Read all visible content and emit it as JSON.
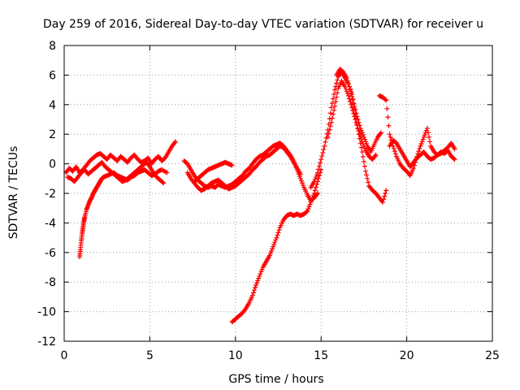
{
  "chart_data": {
    "type": "scatter",
    "title": "Day 259 of 2016, Sidereal Day-to-day VTEC variation (SDTVAR) for receiver u",
    "xlabel": "GPS time / hours",
    "ylabel": "SDTVAR / TECUs",
    "xlim": [
      0,
      25
    ],
    "ylim": [
      -12,
      8
    ],
    "xticks": [
      0,
      5,
      10,
      15,
      20,
      25
    ],
    "yticks": [
      -12,
      -10,
      -8,
      -6,
      -4,
      -2,
      0,
      2,
      4,
      6,
      8
    ],
    "grid": true,
    "marker": "+",
    "color": "#ff0000",
    "series": [
      {
        "x": [
          0.1,
          0.3,
          0.5,
          0.7,
          0.9,
          1.1,
          1.3,
          1.5,
          1.7,
          1.9,
          2.1,
          2.3,
          2.5,
          2.7,
          2.9,
          3.1,
          3.3,
          3.5,
          3.7,
          3.9,
          4.1,
          4.3,
          4.5,
          4.7,
          4.9,
          5.1,
          5.3,
          5.5,
          5.7,
          5.9,
          6.1,
          6.3,
          6.5
        ],
        "y": [
          -0.6,
          -0.3,
          -0.5,
          -0.2,
          -0.6,
          -0.4,
          -0.1,
          0.2,
          0.4,
          0.6,
          0.7,
          0.5,
          0.3,
          0.6,
          0.4,
          0.2,
          0.5,
          0.3,
          0.1,
          0.4,
          0.6,
          0.3,
          0.1,
          0.2,
          0.4,
          0.0,
          0.3,
          0.5,
          0.2,
          0.4,
          0.8,
          1.2,
          1.5
        ]
      },
      {
        "x": [
          0.9,
          0.95,
          1.0,
          1.05,
          1.1,
          1.15,
          1.2,
          1.3,
          1.4,
          1.5,
          1.6,
          1.7,
          1.8,
          1.9,
          2.0,
          2.1,
          2.2,
          2.3,
          2.5,
          2.7,
          2.9,
          3.1,
          3.3,
          3.5,
          3.7,
          3.9,
          4.1,
          4.3,
          4.5,
          4.7,
          4.9,
          5.1,
          5.3,
          5.5,
          5.7,
          6.0
        ],
        "y": [
          -6.3,
          -5.8,
          -5.2,
          -4.7,
          -4.3,
          -3.9,
          -3.6,
          -3.1,
          -2.8,
          -2.5,
          -2.3,
          -2.0,
          -1.8,
          -1.6,
          -1.4,
          -1.2,
          -1.0,
          -0.9,
          -0.8,
          -0.7,
          -0.6,
          -0.8,
          -0.9,
          -1.0,
          -1.1,
          -0.9,
          -0.8,
          -0.6,
          -0.5,
          -0.4,
          -0.6,
          -0.8,
          -0.7,
          -0.5,
          -0.4,
          -0.6
        ]
      },
      {
        "x": [
          0.2,
          0.4,
          0.6,
          0.8,
          1.0,
          1.2,
          1.4,
          1.6,
          1.8,
          2.0,
          2.2,
          2.4,
          2.6,
          2.8,
          3.0,
          3.2,
          3.4,
          3.6,
          3.8,
          4.0,
          4.2,
          4.4,
          4.6,
          4.8,
          5.0,
          5.2,
          5.4,
          5.6,
          5.8
        ],
        "y": [
          -0.9,
          -1.0,
          -1.2,
          -0.9,
          -0.6,
          -0.4,
          -0.7,
          -0.5,
          -0.3,
          -0.1,
          0.1,
          -0.2,
          -0.4,
          -0.6,
          -0.8,
          -1.0,
          -1.2,
          -1.1,
          -0.9,
          -0.7,
          -0.5,
          -0.3,
          -0.1,
          0.1,
          -0.2,
          -0.6,
          -0.9,
          -1.1,
          -1.3
        ]
      },
      {
        "x": [
          7.0,
          7.2,
          7.4,
          7.6,
          7.8,
          8.0,
          8.2,
          8.4,
          8.6,
          8.8,
          9.0,
          9.2,
          9.4,
          9.6,
          9.8,
          10.0,
          10.2,
          10.4,
          10.6,
          10.8,
          11.0,
          11.2,
          11.4,
          11.6,
          11.8,
          12.0,
          12.2,
          12.4,
          12.6,
          12.8,
          13.0,
          13.2,
          13.4,
          13.6,
          13.8,
          14.0,
          14.2,
          14.4,
          14.6,
          14.8
        ],
        "y": [
          0.2,
          0.0,
          -0.4,
          -0.8,
          -1.1,
          -1.3,
          -1.5,
          -1.6,
          -1.5,
          -1.6,
          -1.4,
          -1.5,
          -1.6,
          -1.5,
          -1.4,
          -1.2,
          -1.0,
          -0.8,
          -0.5,
          -0.3,
          0.0,
          0.3,
          0.5,
          0.6,
          0.8,
          1.0,
          1.2,
          1.3,
          1.4,
          1.2,
          0.9,
          0.6,
          0.2,
          -0.4,
          -1.0,
          -1.6,
          -2.1,
          -2.5,
          -2.3,
          -2.0
        ]
      },
      {
        "x": [
          7.2,
          7.4,
          7.6,
          7.8,
          8.0,
          8.2,
          8.4,
          8.6,
          8.8,
          9.0,
          9.2,
          9.4,
          9.6,
          9.8,
          10.0,
          10.2,
          10.4,
          10.6,
          10.8,
          11.0,
          11.2,
          11.4,
          11.6,
          11.8,
          12.0,
          12.2,
          12.4,
          12.6,
          12.8,
          13.0,
          13.2,
          13.4,
          13.6,
          13.8
        ],
        "y": [
          -0.6,
          -1.0,
          -1.3,
          -1.6,
          -1.8,
          -1.7,
          -1.5,
          -1.3,
          -1.2,
          -1.1,
          -1.3,
          -1.5,
          -1.7,
          -1.6,
          -1.5,
          -1.3,
          -1.1,
          -0.9,
          -0.7,
          -0.4,
          -0.2,
          0.1,
          0.3,
          0.5,
          0.6,
          0.8,
          1.0,
          1.2,
          1.1,
          0.8,
          0.5,
          0.1,
          -0.3,
          -0.7
        ]
      },
      {
        "x": [
          7.6,
          7.8,
          8.0,
          8.2,
          8.4,
          8.6,
          8.8,
          9.0,
          9.2,
          9.4,
          9.6,
          9.8
        ],
        "y": [
          -1.2,
          -1.0,
          -0.8,
          -0.6,
          -0.4,
          -0.3,
          -0.2,
          -0.1,
          0.0,
          0.1,
          0.0,
          -0.1
        ]
      },
      {
        "x": [
          9.8,
          10.0,
          10.2,
          10.4,
          10.6,
          10.8,
          11.0,
          11.2,
          11.4,
          11.6,
          11.8,
          12.0,
          12.2,
          12.4,
          12.6,
          12.8,
          13.0,
          13.2,
          13.4,
          13.6,
          13.8,
          14.0,
          14.2,
          14.4,
          14.6,
          14.8,
          15.0
        ],
        "y": [
          -10.7,
          -10.5,
          -10.3,
          -10.1,
          -9.8,
          -9.4,
          -8.9,
          -8.2,
          -7.6,
          -7.0,
          -6.6,
          -6.2,
          -5.6,
          -5.0,
          -4.3,
          -3.8,
          -3.5,
          -3.4,
          -3.5,
          -3.4,
          -3.5,
          -3.4,
          -3.2,
          -2.6,
          -2.0,
          -1.2,
          -0.4
        ]
      },
      {
        "x": [
          14.4,
          14.6,
          14.8,
          15.0,
          15.2,
          15.4,
          15.6,
          15.8,
          16.0,
          16.2,
          16.4,
          16.6,
          16.8,
          17.0,
          17.2,
          17.4,
          17.6,
          17.8,
          18.0,
          18.2,
          18.4,
          18.6,
          18.8
        ],
        "y": [
          -1.6,
          -1.2,
          -0.6,
          0.3,
          1.2,
          2.3,
          3.8,
          5.0,
          5.9,
          6.2,
          5.8,
          5.4,
          4.7,
          3.4,
          2.0,
          0.8,
          -0.5,
          -1.5,
          -1.8,
          -2.0,
          -2.3,
          -2.6,
          -1.8
        ]
      },
      {
        "x": [
          15.4,
          15.6,
          15.8,
          16.0,
          16.2,
          16.4,
          16.6,
          16.8,
          17.0,
          17.2,
          17.4,
          17.6,
          17.8,
          18.0,
          18.2
        ],
        "y": [
          1.8,
          2.8,
          3.9,
          5.1,
          5.6,
          5.2,
          4.6,
          3.8,
          3.0,
          2.2,
          1.5,
          0.9,
          0.5,
          0.3,
          0.6
        ]
      },
      {
        "x": [
          15.9,
          16.1,
          16.3,
          16.5,
          16.7,
          16.9,
          17.1,
          17.3,
          17.5,
          17.7,
          17.9,
          18.1,
          18.3,
          18.5
        ],
        "y": [
          6.0,
          6.4,
          6.2,
          5.8,
          5.0,
          4.1,
          3.2,
          2.4,
          1.8,
          1.2,
          0.8,
          1.3,
          1.8,
          2.1
        ]
      },
      {
        "x": [
          18.4,
          18.6,
          18.8,
          19.0,
          19.2,
          19.4,
          19.6,
          19.8,
          20.0,
          20.2,
          20.4,
          20.6,
          20.8,
          21.0,
          21.2,
          21.4,
          21.6,
          21.8,
          22.0,
          22.2,
          22.4,
          22.6,
          22.8
        ],
        "y": [
          4.6,
          4.5,
          4.3,
          2.0,
          1.2,
          0.5,
          0.0,
          -0.3,
          -0.5,
          -0.8,
          -0.3,
          0.5,
          1.2,
          1.8,
          2.4,
          1.2,
          0.8,
          0.6,
          0.7,
          0.9,
          1.1,
          1.4,
          1.0
        ]
      },
      {
        "x": [
          19.0,
          19.2,
          19.4,
          19.6,
          19.8,
          20.0,
          20.2,
          20.4,
          20.6,
          20.8,
          21.0,
          21.2,
          21.4,
          21.6,
          21.8,
          22.0,
          22.2,
          22.4,
          22.6,
          22.8
        ],
        "y": [
          1.2,
          1.6,
          1.4,
          1.0,
          0.6,
          0.2,
          -0.2,
          0.1,
          0.4,
          0.6,
          0.8,
          0.5,
          0.3,
          0.4,
          0.6,
          0.8,
          0.7,
          0.9,
          0.5,
          0.3
        ]
      }
    ]
  }
}
